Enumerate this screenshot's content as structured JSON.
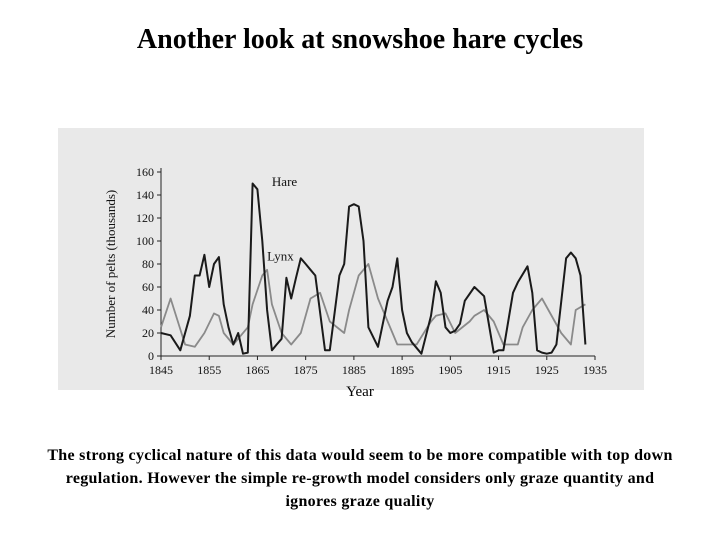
{
  "slide": {
    "title": "Another look at snowshoe hare cycles",
    "caption": "The strong cyclical nature of this data would seem to be more compatible with top down regulation. However the simple re-growth model considers only graze quantity and ignores graze quality"
  },
  "chart_data": {
    "type": "line",
    "title": "",
    "xlabel": "Year",
    "ylabel": "Number of pelts (thousands)",
    "xlim": [
      1845,
      1935
    ],
    "ylim": [
      0,
      160
    ],
    "x_ticks": [
      1845,
      1855,
      1865,
      1875,
      1885,
      1895,
      1905,
      1915,
      1925,
      1935
    ],
    "y_ticks": [
      0,
      20,
      40,
      60,
      80,
      100,
      120,
      140,
      160
    ],
    "grid": false,
    "legend": "inline labels",
    "colors": {
      "Hare": "#1a1a1a",
      "Lynx": "#8a8a8a",
      "panel": "#e9e9e9"
    },
    "series": [
      {
        "name": "Hare",
        "x": [
          1845,
          1847,
          1849,
          1851,
          1852,
          1853,
          1854,
          1855,
          1856,
          1857,
          1858,
          1859,
          1860,
          1861,
          1862,
          1863,
          1864,
          1865,
          1866,
          1867,
          1868,
          1869,
          1870,
          1871,
          1872,
          1873,
          1874,
          1875,
          1876,
          1877,
          1879,
          1880,
          1882,
          1883,
          1884,
          1885,
          1886,
          1887,
          1888,
          1890,
          1892,
          1893,
          1894,
          1895,
          1896,
          1897,
          1899,
          1901,
          1902,
          1903,
          1904,
          1905,
          1906,
          1907,
          1908,
          1910,
          1912,
          1914,
          1915,
          1916,
          1918,
          1919,
          1921,
          1922,
          1923,
          1924,
          1925,
          1926,
          1927,
          1929,
          1930,
          1931,
          1932,
          1933
        ],
        "y": [
          20,
          18,
          5,
          35,
          70,
          70,
          88,
          60,
          80,
          86,
          45,
          25,
          10,
          20,
          2,
          3,
          150,
          145,
          100,
          40,
          5,
          10,
          15,
          68,
          50,
          68,
          85,
          80,
          75,
          70,
          5,
          5,
          70,
          80,
          130,
          132,
          130,
          100,
          25,
          8,
          48,
          60,
          85,
          40,
          20,
          12,
          2,
          35,
          65,
          55,
          25,
          20,
          22,
          28,
          48,
          60,
          52,
          3,
          5,
          5,
          55,
          64,
          78,
          55,
          5,
          3,
          2,
          3,
          10,
          85,
          90,
          85,
          70,
          10
        ]
      },
      {
        "name": "Lynx",
        "x": [
          1845,
          1847,
          1850,
          1852,
          1854,
          1856,
          1857,
          1858,
          1860,
          1863,
          1864,
          1866,
          1867,
          1868,
          1870,
          1872,
          1874,
          1876,
          1878,
          1880,
          1883,
          1884,
          1886,
          1888,
          1890,
          1893,
          1894,
          1896,
          1898,
          1901,
          1902,
          1904,
          1906,
          1909,
          1910,
          1912,
          1914,
          1916,
          1919,
          1920,
          1922,
          1924,
          1928,
          1930,
          1931,
          1933
        ],
        "y": [
          25,
          50,
          10,
          8,
          20,
          37,
          35,
          20,
          10,
          25,
          45,
          70,
          75,
          45,
          20,
          10,
          20,
          50,
          55,
          30,
          20,
          40,
          70,
          80,
          50,
          20,
          10,
          10,
          10,
          30,
          35,
          37,
          20,
          30,
          35,
          40,
          30,
          10,
          10,
          25,
          40,
          50,
          20,
          10,
          40,
          45
        ]
      }
    ]
  }
}
